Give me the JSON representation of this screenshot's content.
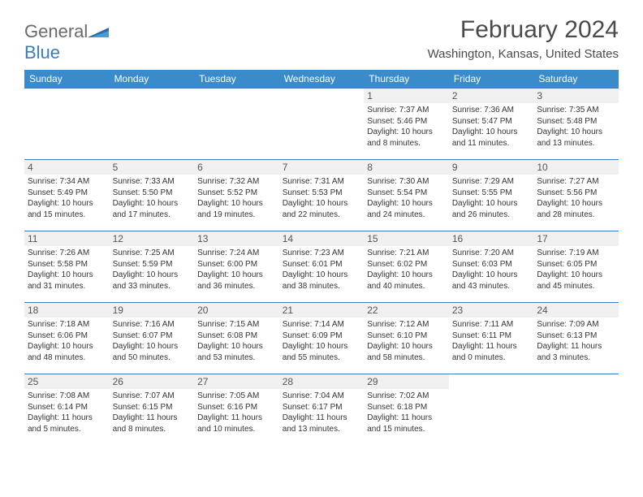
{
  "logo": {
    "general": "General",
    "blue": "Blue"
  },
  "title": "February 2024",
  "subtitle": "Washington, Kansas, United States",
  "colors": {
    "header_bg": "#3a8bc9",
    "header_text": "#ffffff",
    "border": "#3a7dbf",
    "daynum_bg": "#f0f0f0",
    "text": "#333333",
    "title_text": "#4a4a4a",
    "logo_gray": "#6a6a6a",
    "logo_blue": "#3a7dbf"
  },
  "day_names": [
    "Sunday",
    "Monday",
    "Tuesday",
    "Wednesday",
    "Thursday",
    "Friday",
    "Saturday"
  ],
  "weeks": [
    [
      null,
      null,
      null,
      null,
      {
        "num": "1",
        "sunrise": "Sunrise: 7:37 AM",
        "sunset": "Sunset: 5:46 PM",
        "day1": "Daylight: 10 hours",
        "day2": "and 8 minutes."
      },
      {
        "num": "2",
        "sunrise": "Sunrise: 7:36 AM",
        "sunset": "Sunset: 5:47 PM",
        "day1": "Daylight: 10 hours",
        "day2": "and 11 minutes."
      },
      {
        "num": "3",
        "sunrise": "Sunrise: 7:35 AM",
        "sunset": "Sunset: 5:48 PM",
        "day1": "Daylight: 10 hours",
        "day2": "and 13 minutes."
      }
    ],
    [
      {
        "num": "4",
        "sunrise": "Sunrise: 7:34 AM",
        "sunset": "Sunset: 5:49 PM",
        "day1": "Daylight: 10 hours",
        "day2": "and 15 minutes."
      },
      {
        "num": "5",
        "sunrise": "Sunrise: 7:33 AM",
        "sunset": "Sunset: 5:50 PM",
        "day1": "Daylight: 10 hours",
        "day2": "and 17 minutes."
      },
      {
        "num": "6",
        "sunrise": "Sunrise: 7:32 AM",
        "sunset": "Sunset: 5:52 PM",
        "day1": "Daylight: 10 hours",
        "day2": "and 19 minutes."
      },
      {
        "num": "7",
        "sunrise": "Sunrise: 7:31 AM",
        "sunset": "Sunset: 5:53 PM",
        "day1": "Daylight: 10 hours",
        "day2": "and 22 minutes."
      },
      {
        "num": "8",
        "sunrise": "Sunrise: 7:30 AM",
        "sunset": "Sunset: 5:54 PM",
        "day1": "Daylight: 10 hours",
        "day2": "and 24 minutes."
      },
      {
        "num": "9",
        "sunrise": "Sunrise: 7:29 AM",
        "sunset": "Sunset: 5:55 PM",
        "day1": "Daylight: 10 hours",
        "day2": "and 26 minutes."
      },
      {
        "num": "10",
        "sunrise": "Sunrise: 7:27 AM",
        "sunset": "Sunset: 5:56 PM",
        "day1": "Daylight: 10 hours",
        "day2": "and 28 minutes."
      }
    ],
    [
      {
        "num": "11",
        "sunrise": "Sunrise: 7:26 AM",
        "sunset": "Sunset: 5:58 PM",
        "day1": "Daylight: 10 hours",
        "day2": "and 31 minutes."
      },
      {
        "num": "12",
        "sunrise": "Sunrise: 7:25 AM",
        "sunset": "Sunset: 5:59 PM",
        "day1": "Daylight: 10 hours",
        "day2": "and 33 minutes."
      },
      {
        "num": "13",
        "sunrise": "Sunrise: 7:24 AM",
        "sunset": "Sunset: 6:00 PM",
        "day1": "Daylight: 10 hours",
        "day2": "and 36 minutes."
      },
      {
        "num": "14",
        "sunrise": "Sunrise: 7:23 AM",
        "sunset": "Sunset: 6:01 PM",
        "day1": "Daylight: 10 hours",
        "day2": "and 38 minutes."
      },
      {
        "num": "15",
        "sunrise": "Sunrise: 7:21 AM",
        "sunset": "Sunset: 6:02 PM",
        "day1": "Daylight: 10 hours",
        "day2": "and 40 minutes."
      },
      {
        "num": "16",
        "sunrise": "Sunrise: 7:20 AM",
        "sunset": "Sunset: 6:03 PM",
        "day1": "Daylight: 10 hours",
        "day2": "and 43 minutes."
      },
      {
        "num": "17",
        "sunrise": "Sunrise: 7:19 AM",
        "sunset": "Sunset: 6:05 PM",
        "day1": "Daylight: 10 hours",
        "day2": "and 45 minutes."
      }
    ],
    [
      {
        "num": "18",
        "sunrise": "Sunrise: 7:18 AM",
        "sunset": "Sunset: 6:06 PM",
        "day1": "Daylight: 10 hours",
        "day2": "and 48 minutes."
      },
      {
        "num": "19",
        "sunrise": "Sunrise: 7:16 AM",
        "sunset": "Sunset: 6:07 PM",
        "day1": "Daylight: 10 hours",
        "day2": "and 50 minutes."
      },
      {
        "num": "20",
        "sunrise": "Sunrise: 7:15 AM",
        "sunset": "Sunset: 6:08 PM",
        "day1": "Daylight: 10 hours",
        "day2": "and 53 minutes."
      },
      {
        "num": "21",
        "sunrise": "Sunrise: 7:14 AM",
        "sunset": "Sunset: 6:09 PM",
        "day1": "Daylight: 10 hours",
        "day2": "and 55 minutes."
      },
      {
        "num": "22",
        "sunrise": "Sunrise: 7:12 AM",
        "sunset": "Sunset: 6:10 PM",
        "day1": "Daylight: 10 hours",
        "day2": "and 58 minutes."
      },
      {
        "num": "23",
        "sunrise": "Sunrise: 7:11 AM",
        "sunset": "Sunset: 6:11 PM",
        "day1": "Daylight: 11 hours",
        "day2": "and 0 minutes."
      },
      {
        "num": "24",
        "sunrise": "Sunrise: 7:09 AM",
        "sunset": "Sunset: 6:13 PM",
        "day1": "Daylight: 11 hours",
        "day2": "and 3 minutes."
      }
    ],
    [
      {
        "num": "25",
        "sunrise": "Sunrise: 7:08 AM",
        "sunset": "Sunset: 6:14 PM",
        "day1": "Daylight: 11 hours",
        "day2": "and 5 minutes."
      },
      {
        "num": "26",
        "sunrise": "Sunrise: 7:07 AM",
        "sunset": "Sunset: 6:15 PM",
        "day1": "Daylight: 11 hours",
        "day2": "and 8 minutes."
      },
      {
        "num": "27",
        "sunrise": "Sunrise: 7:05 AM",
        "sunset": "Sunset: 6:16 PM",
        "day1": "Daylight: 11 hours",
        "day2": "and 10 minutes."
      },
      {
        "num": "28",
        "sunrise": "Sunrise: 7:04 AM",
        "sunset": "Sunset: 6:17 PM",
        "day1": "Daylight: 11 hours",
        "day2": "and 13 minutes."
      },
      {
        "num": "29",
        "sunrise": "Sunrise: 7:02 AM",
        "sunset": "Sunset: 6:18 PM",
        "day1": "Daylight: 11 hours",
        "day2": "and 15 minutes."
      },
      null,
      null
    ]
  ]
}
